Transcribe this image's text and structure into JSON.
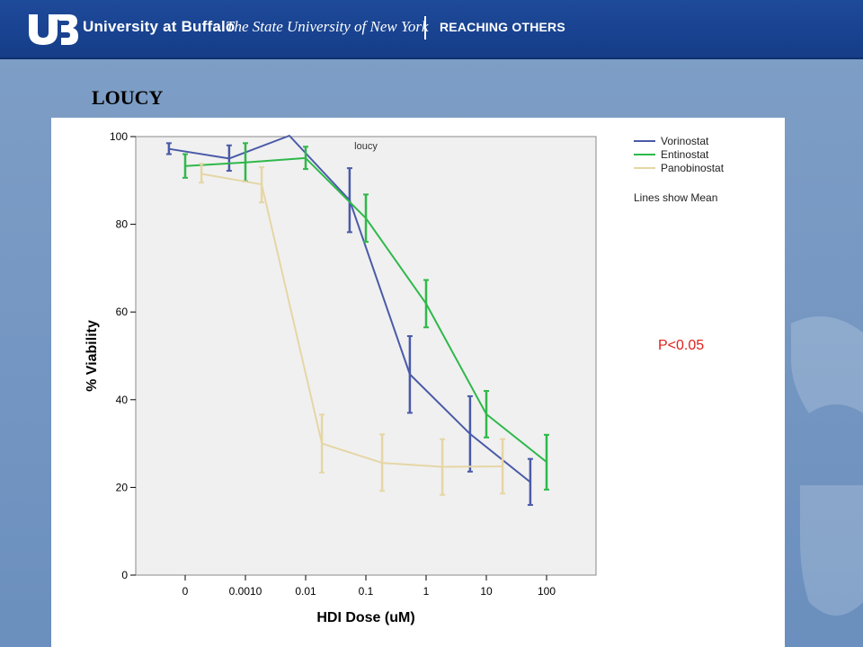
{
  "header": {
    "university": "University at Buffalo",
    "subtitle": "The State University of New York",
    "tagline": "REACHING OTHERS",
    "brand_color": "#1a4494"
  },
  "slide": {
    "title": "LOUCY"
  },
  "annotations": {
    "significance": "P<0.05",
    "significance_color": "#e0201b"
  },
  "chart_data": {
    "type": "line",
    "title": "loucy",
    "xlabel": "HDI Dose (uM)",
    "ylabel": "% Viability",
    "x_categories": [
      "0",
      "0.0010",
      "0.01",
      "0.1",
      "1",
      "10",
      "100"
    ],
    "ylim": [
      0,
      100
    ],
    "y_ticks": [
      0,
      20,
      40,
      60,
      80,
      100
    ],
    "grid": false,
    "legend_position": "right",
    "legend_note": "Lines show Mean",
    "series": [
      {
        "name": "Vorinostat",
        "color": "#4a5aa8",
        "points": [
          {
            "x": -0.27,
            "mean": 97.2,
            "lo": 96.0,
            "hi": 98.5
          },
          {
            "x": 0.73,
            "mean": 95.0,
            "lo": 92.2,
            "hi": 98.0
          },
          {
            "x": 1.73,
            "mean": 100.2,
            "lo": 100.2,
            "hi": 100.2
          },
          {
            "x": 2.73,
            "mean": 85.5,
            "lo": 78.2,
            "hi": 92.8
          },
          {
            "x": 3.73,
            "mean": 45.8,
            "lo": 37.0,
            "hi": 54.5
          },
          {
            "x": 4.73,
            "mean": 32.2,
            "lo": 23.6,
            "hi": 40.8
          },
          {
            "x": 5.73,
            "mean": 21.2,
            "lo": 16.0,
            "hi": 26.5
          }
        ]
      },
      {
        "name": "Entinostat",
        "color": "#2fb84a",
        "points": [
          {
            "x": 0.0,
            "mean": 93.3,
            "lo": 90.6,
            "hi": 96.0
          },
          {
            "x": 1.0,
            "mean": 94.1,
            "lo": 89.8,
            "hi": 98.5
          },
          {
            "x": 2.0,
            "mean": 95.1,
            "lo": 92.6,
            "hi": 97.7
          },
          {
            "x": 3.0,
            "mean": 81.4,
            "lo": 76.0,
            "hi": 86.8
          },
          {
            "x": 4.0,
            "mean": 61.9,
            "lo": 56.5,
            "hi": 67.3
          },
          {
            "x": 5.0,
            "mean": 36.7,
            "lo": 31.4,
            "hi": 42.0
          },
          {
            "x": 6.0,
            "mean": 25.8,
            "lo": 19.5,
            "hi": 32.0
          }
        ]
      },
      {
        "name": "Panobinostat",
        "color": "#e6d6a6",
        "points": [
          {
            "x": 0.27,
            "mean": 91.5,
            "lo": 89.5,
            "hi": 93.8
          },
          {
            "x": 1.27,
            "mean": 89.1,
            "lo": 85.0,
            "hi": 93.0
          },
          {
            "x": 2.27,
            "mean": 30.0,
            "lo": 23.4,
            "hi": 36.6
          },
          {
            "x": 3.27,
            "mean": 25.6,
            "lo": 19.2,
            "hi": 32.1
          },
          {
            "x": 4.27,
            "mean": 24.7,
            "lo": 18.3,
            "hi": 31.0
          },
          {
            "x": 5.27,
            "mean": 24.8,
            "lo": 18.6,
            "hi": 31.0
          }
        ]
      }
    ]
  }
}
